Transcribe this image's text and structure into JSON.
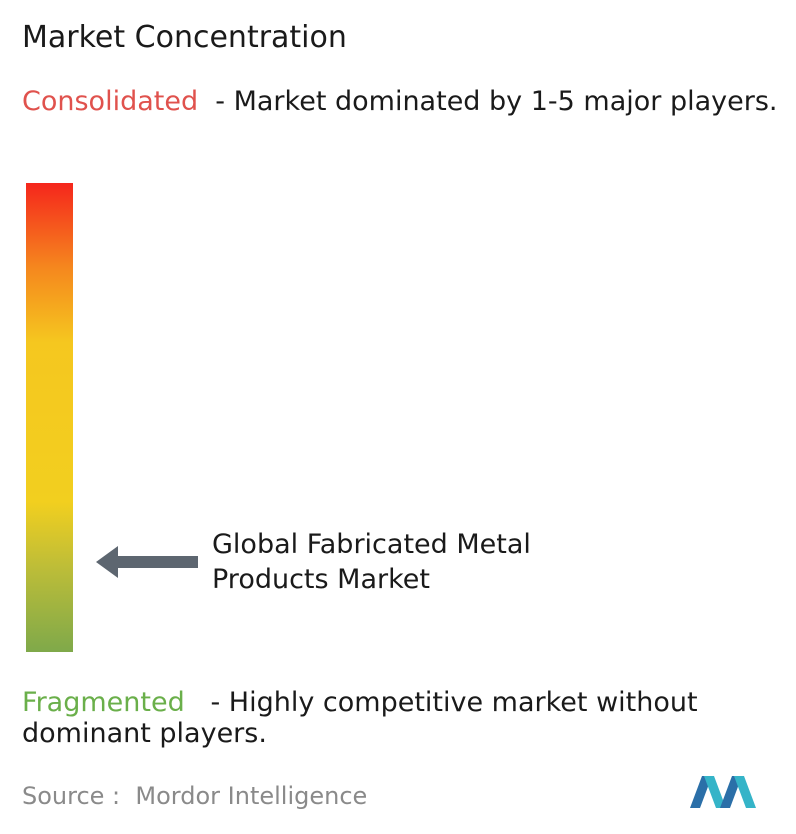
{
  "title": "Market Concentration",
  "consolidated": {
    "label": "Consolidated",
    "description": "- Market dominated by 1-5 major players."
  },
  "market": {
    "label": "Global Fabricated Metal Products Market"
  },
  "fragmented": {
    "label": "Fragmented",
    "description": "- Highly competitive market without dominant players."
  },
  "source": "Source :  Mordor Intelligence"
}
